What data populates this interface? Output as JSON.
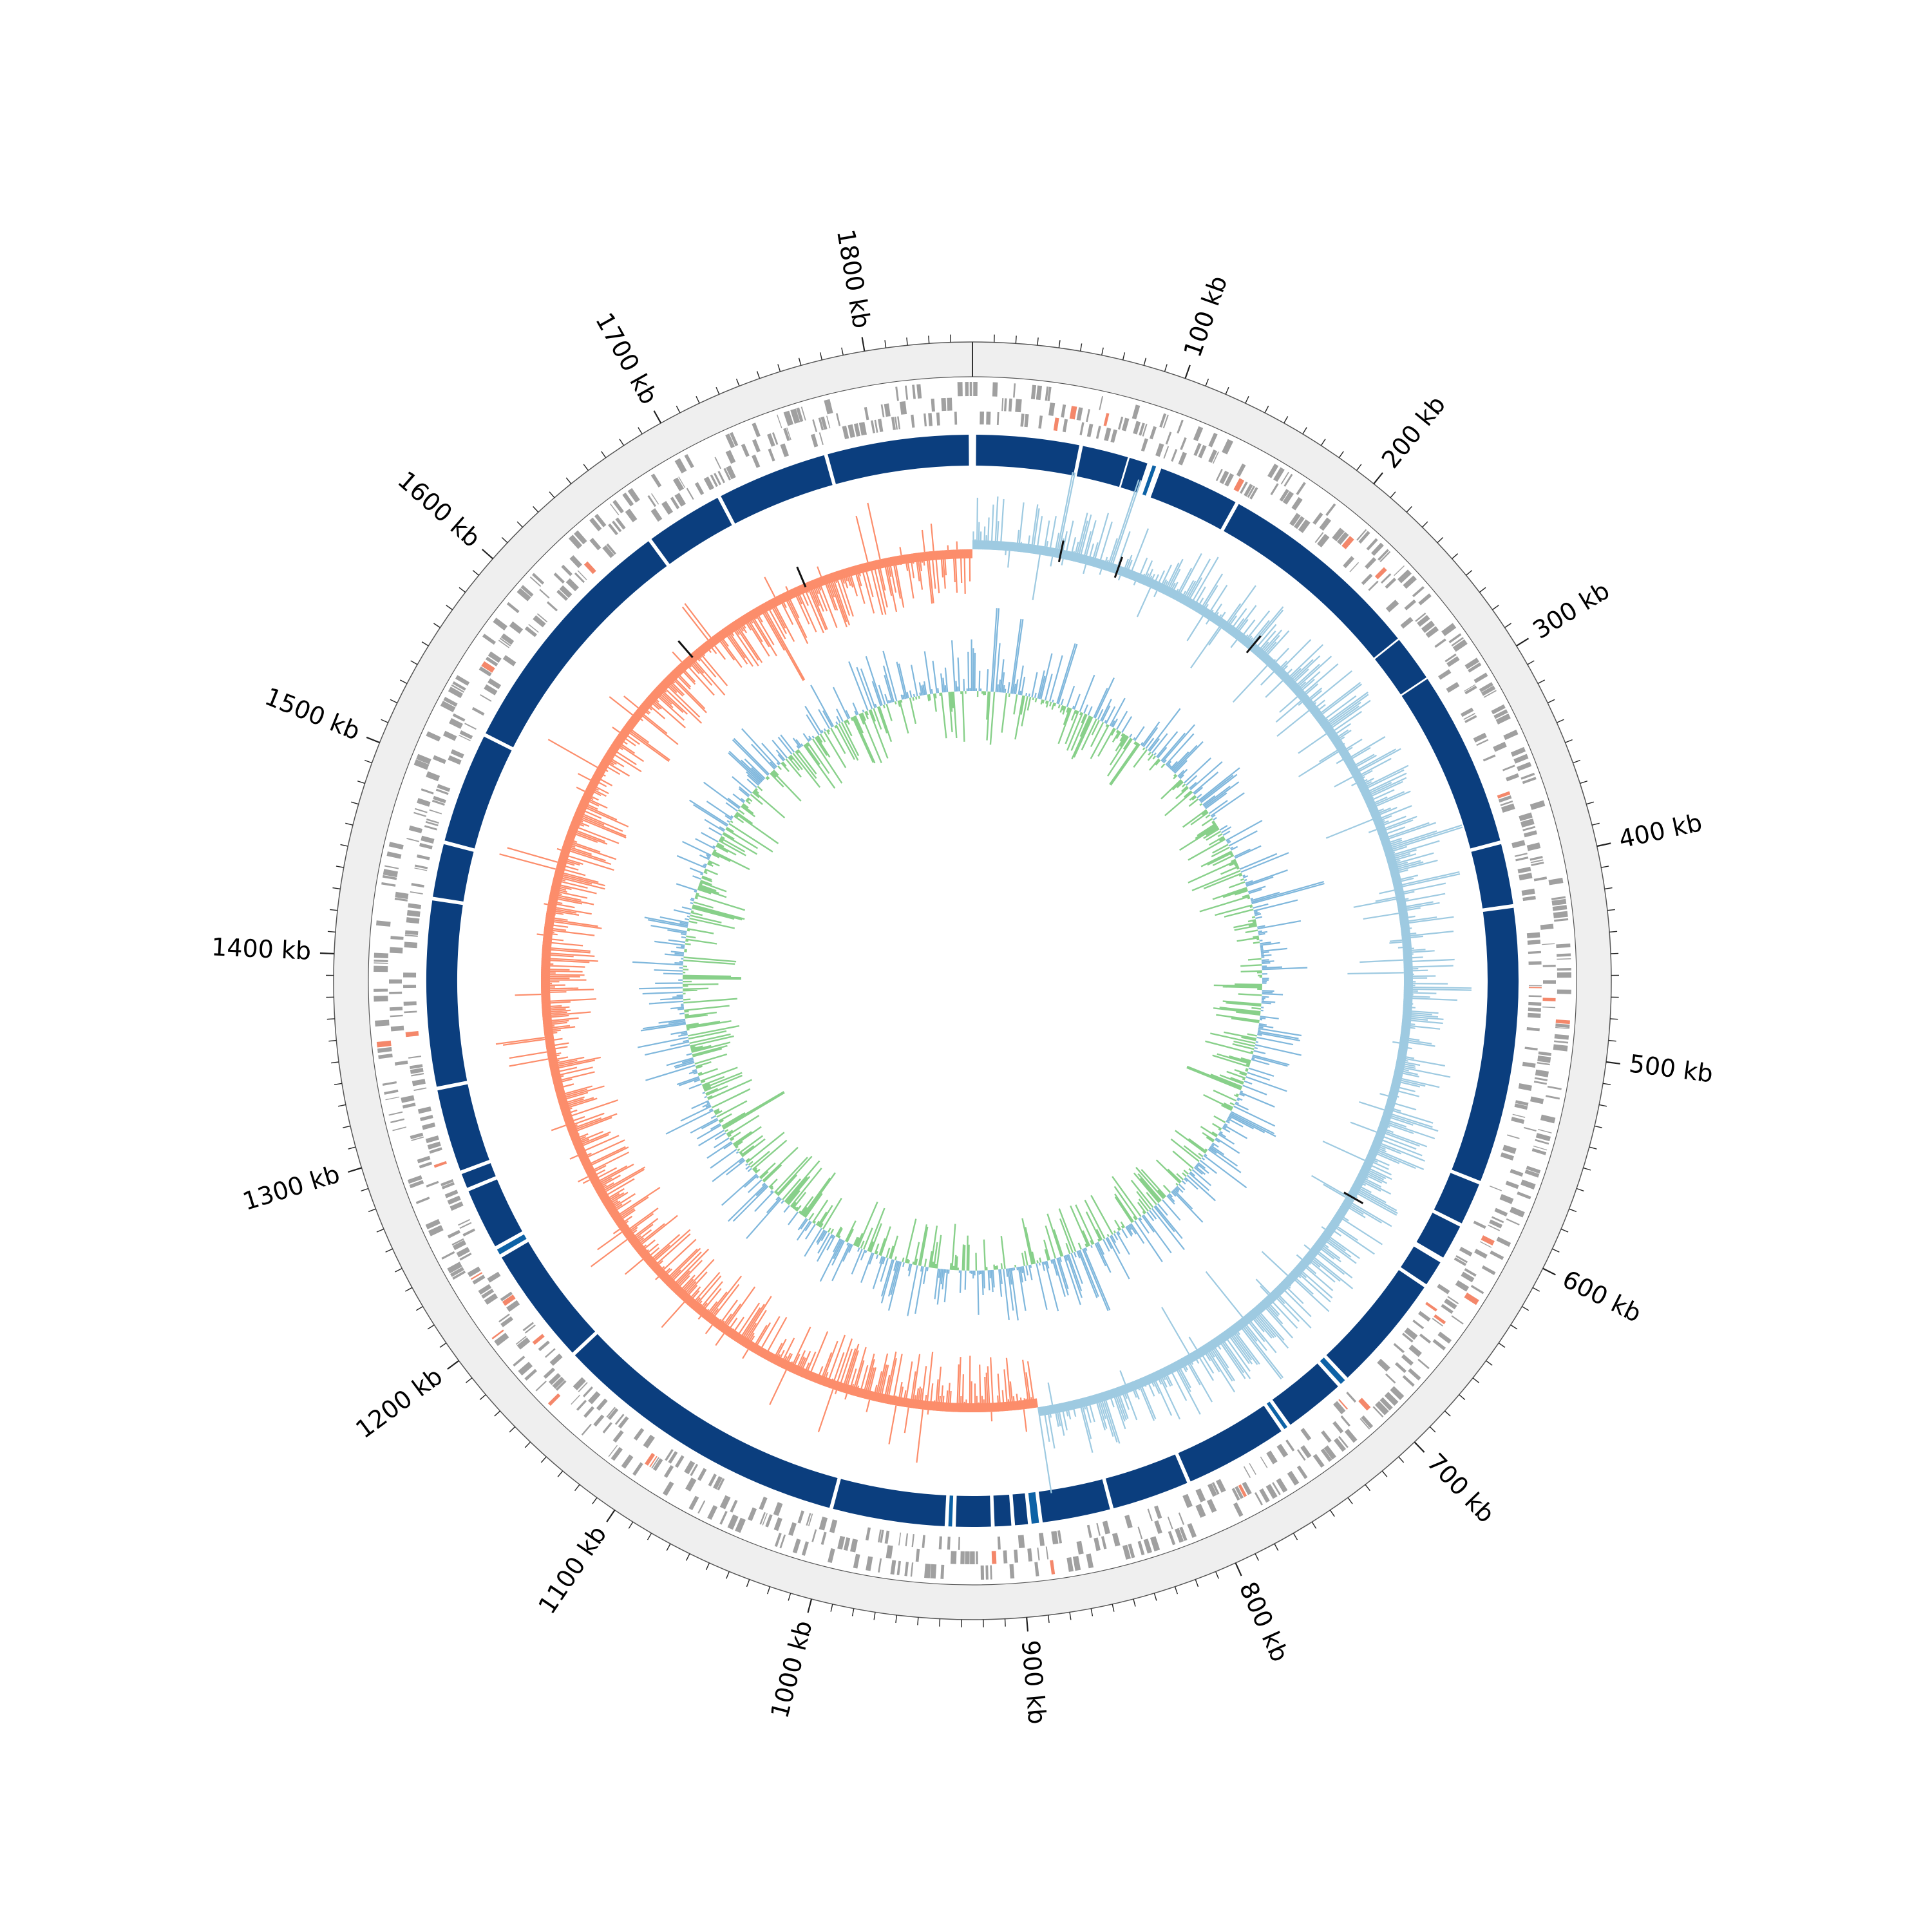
{
  "genome": {
    "length_kb": 1850,
    "tick_labels": [
      "100 kb",
      "200 kb",
      "300 kb",
      "400 kb",
      "500 kb",
      "600 kb",
      "700 kb",
      "800 kb",
      "900 kb",
      "1000 kb",
      "1100 kb",
      "1200 kb",
      "1300 kb",
      "1400 kb",
      "1500 kb",
      "1600 kb",
      "1700 kb",
      "1800 kb"
    ],
    "tick_positions_kb": [
      100,
      200,
      300,
      400,
      500,
      600,
      700,
      800,
      900,
      1000,
      1100,
      1200,
      1300,
      1400,
      1500,
      1600,
      1700,
      1800
    ],
    "minor_tick_step_kb": 10
  },
  "colors": {
    "ring_background": "#efefef",
    "gene_feature": "#a0a0a0",
    "gene_feature_highlight": "#f4876a",
    "contig_block": "#0b3e7e",
    "contig_block_alt": "#0d62a6",
    "gc_skew_positive": "#9ecae1",
    "gc_skew_negative": "#fc8d6b",
    "gc_content_positive": "#7fb7dc",
    "gc_content_negative": "#88d08a",
    "marker": "#111111"
  },
  "contig_blocks_kb": [
    [
      2,
      58
    ],
    [
      60,
      85
    ],
    [
      86,
      96
    ],
    [
      99,
      101
    ],
    [
      104,
      148
    ],
    [
      150,
      263
    ],
    [
      264,
      289
    ],
    [
      290,
      386
    ],
    [
      388,
      421
    ],
    [
      423,
      573
    ],
    [
      575,
      598
    ],
    [
      600,
      619
    ],
    [
      622,
      636
    ],
    [
      638,
      702
    ],
    [
      704,
      707
    ],
    [
      709,
      742
    ],
    [
      744,
      746
    ],
    [
      748,
      804
    ],
    [
      806,
      848
    ],
    [
      850,
      887
    ],
    [
      889,
      893
    ],
    [
      895,
      902
    ],
    [
      904,
      913
    ],
    [
      915,
      934
    ],
    [
      936,
      938
    ],
    [
      940,
      1001
    ],
    [
      1003,
      1165
    ],
    [
      1167,
      1231
    ],
    [
      1233,
      1236
    ],
    [
      1238,
      1271
    ],
    [
      1273,
      1281
    ],
    [
      1283,
      1328
    ],
    [
      1330,
      1431
    ],
    [
      1433,
      1462
    ],
    [
      1464,
      1524
    ],
    [
      1526,
      1663
    ],
    [
      1665,
      1707
    ],
    [
      1709,
      1769
    ],
    [
      1771,
      1848
    ]
  ],
  "gc_skew_profile": {
    "positive_arc_kb": [
      0,
      880
    ],
    "negative_arc_kb": [
      880,
      1850
    ],
    "spikes_kb": [
      {
        "pos": 58,
        "value": 0.9
      },
      {
        "pos": 95,
        "value": 1.0
      },
      {
        "pos": 270,
        "value": -0.6
      },
      {
        "pos": 372,
        "value": 0.85
      },
      {
        "pos": 398,
        "value": -0.7
      },
      {
        "pos": 468,
        "value": 0.7
      },
      {
        "pos": 610,
        "value": 0.55
      },
      {
        "pos": 730,
        "value": 0.75
      },
      {
        "pos": 880,
        "value": 0.9
      },
      {
        "pos": 1410,
        "value": -0.5
      },
      {
        "pos": 1700,
        "value": -0.9
      }
    ]
  },
  "gc_content_profile": {
    "spikes_kb": [
      {
        "pos": 20,
        "value": 1.0
      },
      {
        "pos": 40,
        "value": 0.9
      },
      {
        "pos": 88,
        "value": 0.75
      },
      {
        "pos": 180,
        "value": -0.6
      },
      {
        "pos": 382,
        "value": 0.9
      },
      {
        "pos": 575,
        "value": -0.7
      },
      {
        "pos": 810,
        "value": 0.8
      },
      {
        "pos": 1230,
        "value": -0.85
      },
      {
        "pos": 1390,
        "value": -0.7
      },
      {
        "pos": 1620,
        "value": 0.6
      }
    ]
  }
}
